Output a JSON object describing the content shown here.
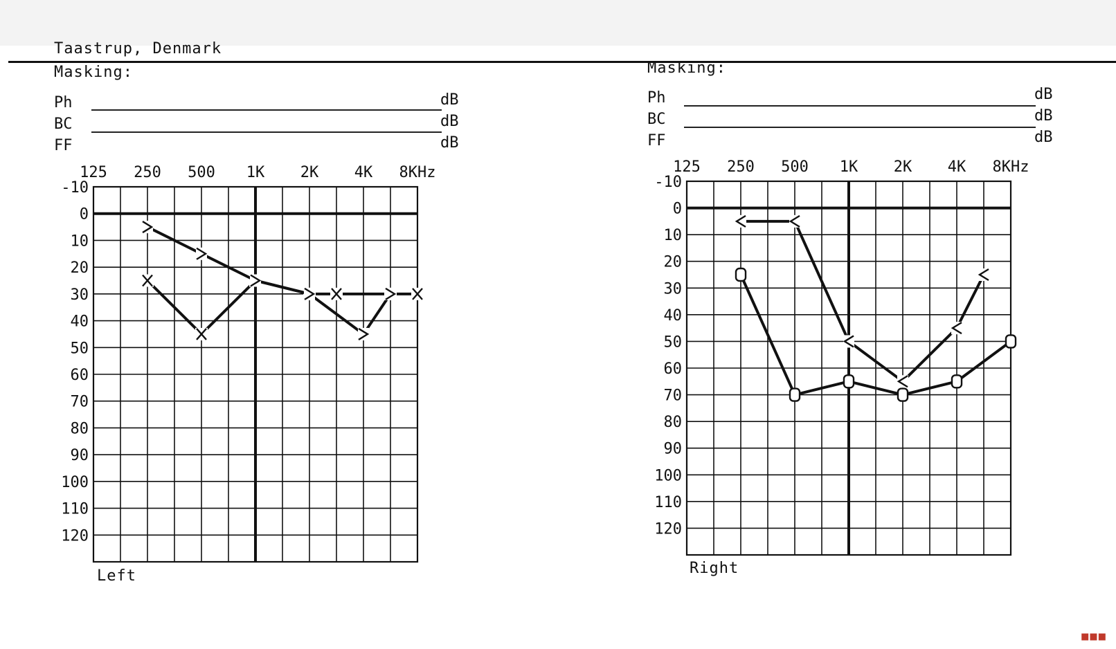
{
  "header": {
    "location": "Taastrup, Denmark"
  },
  "masking_left": {
    "title": "Masking:",
    "rows": [
      {
        "label": "Ph",
        "unit": "dB"
      },
      {
        "label": "BC",
        "unit": "dB"
      },
      {
        "label": "FF",
        "unit": "dB"
      }
    ]
  },
  "masking_right": {
    "title": "Masking:",
    "rows": [
      {
        "label": "Ph",
        "unit": "dB"
      },
      {
        "label": "BC",
        "unit": "dB"
      },
      {
        "label": "FF",
        "unit": "dB"
      }
    ]
  },
  "chart_data": [
    {
      "type": "line",
      "ear_label": "Left",
      "x_tick_labels": [
        "125",
        "250",
        "500",
        "1K",
        "2K",
        "4K",
        "8KHz"
      ],
      "y_tick_labels": [
        "-10",
        "0",
        "10",
        "20",
        "30",
        "40",
        "50",
        "60",
        "70",
        "80",
        "90",
        "100",
        "110",
        "120"
      ],
      "ylim": [
        -10,
        130
      ],
      "y_inverted": true,
      "grid": true,
      "series": [
        {
          "marker": "X",
          "points": [
            {
              "freq": "250",
              "db": 25
            },
            {
              "freq": "500",
              "db": 45
            },
            {
              "freq": "1K",
              "db": 25
            },
            {
              "freq": "2K",
              "db": 30
            },
            {
              "freq": "3K",
              "db": 30
            },
            {
              "freq": "6K",
              "db": 30
            },
            {
              "freq": "8KHz",
              "db": 30
            }
          ]
        },
        {
          "marker": ">",
          "points": [
            {
              "freq": "250",
              "db": 5
            },
            {
              "freq": "500",
              "db": 15
            },
            {
              "freq": "1K",
              "db": 25
            },
            {
              "freq": "2K",
              "db": 30
            },
            {
              "freq": "4K",
              "db": 45
            },
            {
              "freq": "6K",
              "db": 30
            }
          ]
        }
      ]
    },
    {
      "type": "line",
      "ear_label": "Right",
      "x_tick_labels": [
        "125",
        "250",
        "500",
        "1K",
        "2K",
        "4K",
        "8KHz"
      ],
      "y_tick_labels": [
        "-10",
        "0",
        "10",
        "20",
        "30",
        "40",
        "50",
        "60",
        "70",
        "80",
        "90",
        "100",
        "110",
        "120"
      ],
      "ylim": [
        -10,
        130
      ],
      "y_inverted": true,
      "grid": true,
      "series": [
        {
          "marker": "O",
          "points": [
            {
              "freq": "250",
              "db": 25
            },
            {
              "freq": "500",
              "db": 70
            },
            {
              "freq": "1K",
              "db": 65
            },
            {
              "freq": "2K",
              "db": 70
            },
            {
              "freq": "4K",
              "db": 65
            },
            {
              "freq": "8KHz",
              "db": 50
            }
          ]
        },
        {
          "marker": "<",
          "points": [
            {
              "freq": "250",
              "db": 5
            },
            {
              "freq": "500",
              "db": 5
            },
            {
              "freq": "1K",
              "db": 50
            },
            {
              "freq": "2K",
              "db": 65
            },
            {
              "freq": "4K",
              "db": 45
            },
            {
              "freq": "6K",
              "db": 25
            }
          ]
        }
      ]
    }
  ]
}
